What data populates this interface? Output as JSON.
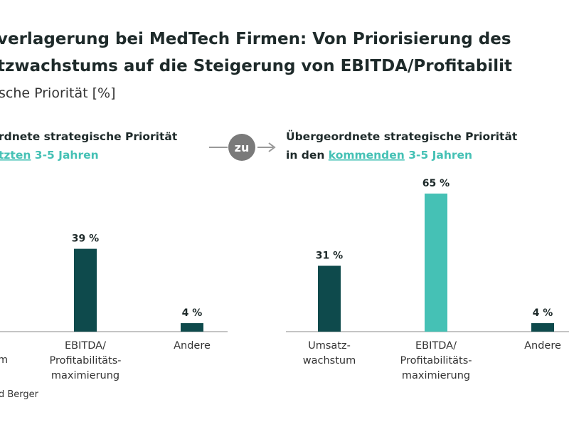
{
  "header": {
    "title_lines": [
      "verlagerung bei MedTech Firmen: Von Priorisierung des",
      "tzwachstums auf die Steigerung von EBITDA/Profitabilit"
    ],
    "subtitle": "sche Priorität [%]",
    "connector": "zu",
    "source": "d Berger"
  },
  "chart_data": [
    {
      "type": "bar",
      "heading": [
        "rdnete strategische Priorität",
        {
          "parts": [
            {
              "text": "tzten",
              "accent": true,
              "underline": true
            },
            {
              "text": " 3-5 Jahren",
              "accent": true
            }
          ]
        }
      ],
      "cut_label": "m",
      "categories": [
        [
          "EBITDA/",
          "Profitabilitäts-",
          "maximierung"
        ],
        [
          "Andere"
        ]
      ],
      "values": [
        39,
        4
      ],
      "value_labels": [
        "39 %",
        "4 %"
      ],
      "colors": [
        "#0e4a4c",
        "#0e4a4c"
      ],
      "ylim": [
        0,
        65
      ]
    },
    {
      "type": "bar",
      "heading": [
        "Übergeordnete strategische Priorität",
        {
          "parts": [
            {
              "text": "in den "
            },
            {
              "text": "kommenden",
              "accent": true,
              "underline": true
            },
            {
              "text": " 3-5 Jahren",
              "accent": true
            }
          ]
        }
      ],
      "categories": [
        [
          "Umsatz-",
          "wachstum"
        ],
        [
          "EBITDA/",
          "Profitabilitäts-",
          "maximierung"
        ],
        [
          "Andere"
        ]
      ],
      "values": [
        31,
        65,
        4
      ],
      "value_labels": [
        "31 %",
        "65 %",
        "4 %"
      ],
      "colors": [
        "#0e4a4c",
        "#45c1b5",
        "#0e4a4c"
      ],
      "ylim": [
        0,
        65
      ]
    }
  ]
}
